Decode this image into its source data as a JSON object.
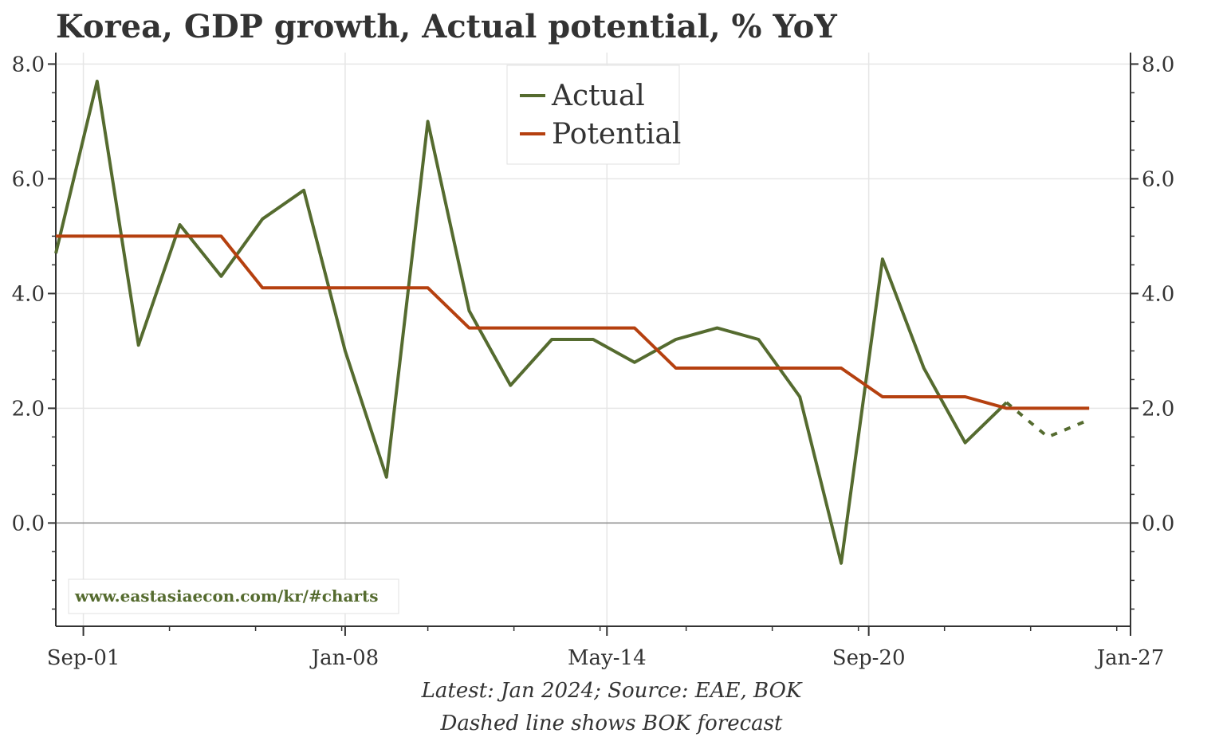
{
  "title": "Korea, GDP growth, Actual potential, % YoY",
  "watermark": "www.eastasiaecon.com/kr/#charts",
  "footnotes": [
    "Latest: Jan 2024; Source: EAE, BOK",
    "Dashed line shows BOK forecast"
  ],
  "colors": {
    "actual": "#556b2f",
    "potential": "#b5400f",
    "grid": "#e6e6e6",
    "zero": "#888888",
    "axis": "#333333"
  },
  "chart_data": {
    "type": "line",
    "title": "Korea, GDP growth, Actual potential, % YoY",
    "x_axis": {
      "type": "date",
      "range": [
        "2001-01",
        "2027-01"
      ],
      "tick_labels": [
        "Sep-01",
        "Jan-08",
        "May-14",
        "Sep-20",
        "Jan-27"
      ],
      "tick_dates": [
        "2001-09",
        "2008-01",
        "2014-05",
        "2020-09",
        "2027-01"
      ]
    },
    "y_axis": {
      "range": [
        -1.8,
        8.2
      ],
      "ticks": [
        0.0,
        2.0,
        4.0,
        6.0,
        8.0
      ],
      "tick_labels": [
        "0.0",
        "2.0",
        "4.0",
        "6.0",
        "8.0"
      ],
      "right_axis_mirrors_left": true
    },
    "grid": true,
    "legend": {
      "placement": "top-center",
      "entries": [
        "Actual",
        "Potential"
      ]
    },
    "x": [
      "2001-01",
      "2002-01",
      "2003-01",
      "2004-01",
      "2005-01",
      "2006-01",
      "2007-01",
      "2008-01",
      "2009-01",
      "2010-01",
      "2011-01",
      "2012-01",
      "2013-01",
      "2014-01",
      "2015-01",
      "2016-01",
      "2017-01",
      "2018-01",
      "2019-01",
      "2020-01",
      "2021-01",
      "2022-01",
      "2023-01",
      "2024-01",
      "2025-01",
      "2026-01"
    ],
    "series": [
      {
        "name": "Actual",
        "style": "solid",
        "values": [
          4.7,
          7.7,
          3.1,
          5.2,
          4.3,
          5.3,
          5.8,
          3.0,
          0.8,
          7.0,
          3.7,
          2.4,
          3.2,
          3.2,
          2.8,
          3.2,
          3.4,
          3.2,
          2.2,
          -0.7,
          4.6,
          2.7,
          1.4,
          2.1,
          null,
          null
        ]
      },
      {
        "name": "Actual (BOK forecast)",
        "style": "dashed",
        "legend": false,
        "values": [
          null,
          null,
          null,
          null,
          null,
          null,
          null,
          null,
          null,
          null,
          null,
          null,
          null,
          null,
          null,
          null,
          null,
          null,
          null,
          null,
          null,
          null,
          null,
          2.1,
          1.5,
          1.8
        ]
      },
      {
        "name": "Potential",
        "style": "solid",
        "values": [
          5.0,
          5.0,
          5.0,
          5.0,
          5.0,
          4.1,
          4.1,
          4.1,
          4.1,
          4.1,
          3.4,
          3.4,
          3.4,
          3.4,
          3.4,
          2.7,
          2.7,
          2.7,
          2.7,
          2.7,
          2.2,
          2.2,
          2.2,
          2.0,
          2.0,
          2.0
        ]
      }
    ]
  }
}
